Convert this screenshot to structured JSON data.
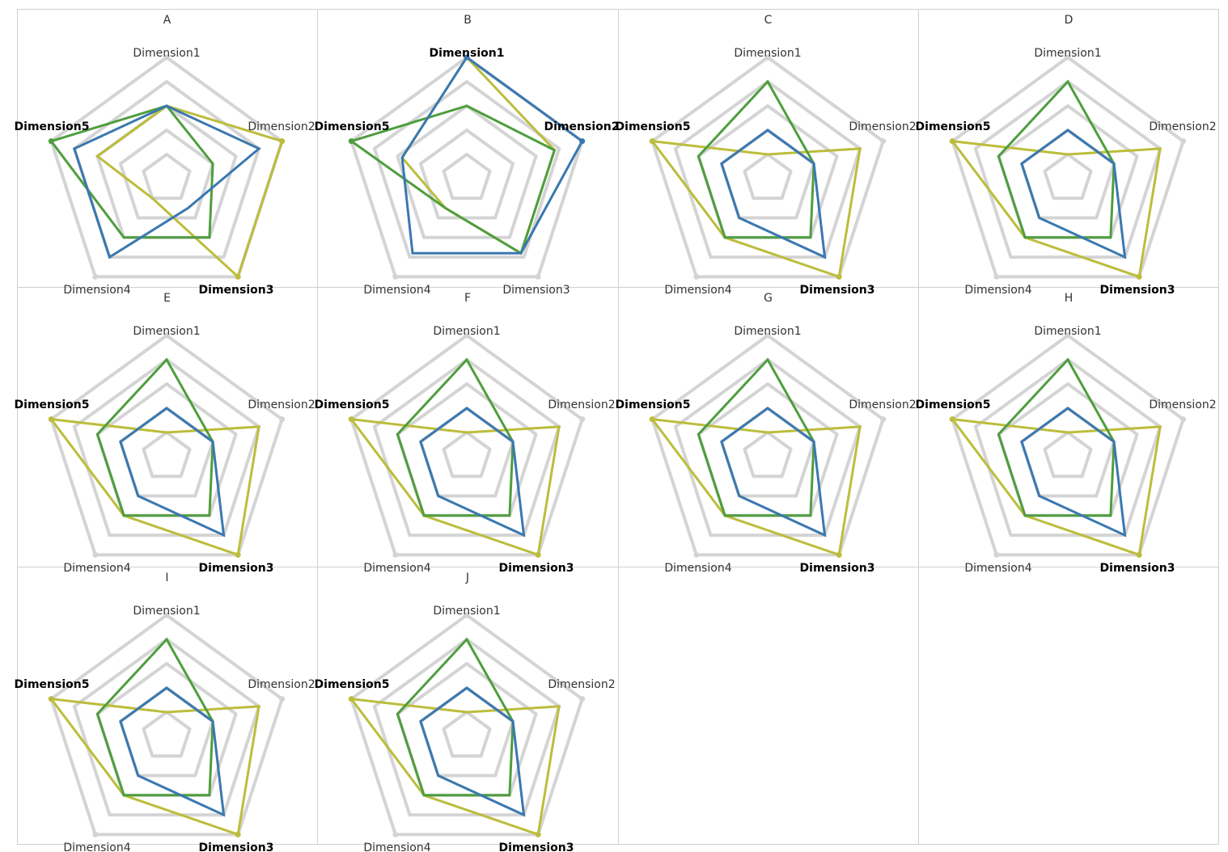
{
  "chart_data": {
    "type": "radar",
    "axes": [
      "Dimension1",
      "Dimension2",
      "Dimension3",
      "Dimension4",
      "Dimension5"
    ],
    "rlim": [
      0,
      5
    ],
    "rings": [
      1,
      2,
      3,
      4,
      5
    ],
    "series_colors": {
      "yellow": "#bcbd3c",
      "green": "#4e9e3e",
      "blue": "#3a78b0"
    },
    "grid_color": "#d4d4d4",
    "panels": [
      {
        "title": "A",
        "bold_axes": [
          5,
          3
        ],
        "series": [
          {
            "name": "yellow",
            "values": [
              3.0,
              5.0,
              5.0,
              1.0,
              3.0
            ],
            "markers": [
              2,
              3
            ]
          },
          {
            "name": "green",
            "values": [
              3.0,
              2.0,
              3.0,
              3.0,
              5.0
            ],
            "markers": [
              5
            ]
          },
          {
            "name": "blue",
            "values": [
              3.0,
              4.0,
              1.5,
              4.0,
              4.0
            ],
            "markers": []
          }
        ]
      },
      {
        "title": "B",
        "bold_axes": [
          1,
          2,
          5
        ],
        "series": [
          {
            "name": "yellow",
            "values": [
              5.0,
              3.8,
              3.8,
              1.5,
              2.8
            ],
            "markers": []
          },
          {
            "name": "green",
            "values": [
              3.0,
              3.8,
              3.8,
              1.5,
              5.0
            ],
            "markers": [
              5
            ]
          },
          {
            "name": "blue",
            "values": [
              5.0,
              5.0,
              3.8,
              3.8,
              2.8
            ],
            "markers": [
              1,
              2
            ]
          }
        ]
      },
      {
        "title": "C",
        "bold_axes": [
          3,
          5
        ],
        "series": [
          {
            "name": "yellow",
            "values": [
              1.0,
              4.0,
              5.0,
              3.0,
              5.0
            ],
            "markers": [
              3,
              5
            ]
          },
          {
            "name": "green",
            "values": [
              4.0,
              2.0,
              3.0,
              3.0,
              3.0
            ],
            "markers": []
          },
          {
            "name": "blue",
            "values": [
              2.0,
              2.0,
              4.0,
              2.0,
              2.0
            ],
            "markers": []
          }
        ]
      },
      {
        "title": "D",
        "bold_axes": [
          3,
          5
        ],
        "series": [
          {
            "name": "yellow",
            "values": [
              1.0,
              4.0,
              5.0,
              3.0,
              5.0
            ],
            "markers": [
              3,
              5
            ]
          },
          {
            "name": "green",
            "values": [
              4.0,
              2.0,
              3.0,
              3.0,
              3.0
            ],
            "markers": []
          },
          {
            "name": "blue",
            "values": [
              2.0,
              2.0,
              4.0,
              2.0,
              2.0
            ],
            "markers": []
          }
        ]
      },
      {
        "title": "E",
        "bold_axes": [
          3,
          5
        ],
        "series": [
          {
            "name": "yellow",
            "values": [
              1.0,
              4.0,
              5.0,
              3.0,
              5.0
            ],
            "markers": [
              3,
              5
            ]
          },
          {
            "name": "green",
            "values": [
              4.0,
              2.0,
              3.0,
              3.0,
              3.0
            ],
            "markers": []
          },
          {
            "name": "blue",
            "values": [
              2.0,
              2.0,
              4.0,
              2.0,
              2.0
            ],
            "markers": []
          }
        ]
      },
      {
        "title": "F",
        "bold_axes": [
          3,
          5
        ],
        "series": [
          {
            "name": "yellow",
            "values": [
              1.0,
              4.0,
              5.0,
              3.0,
              5.0
            ],
            "markers": [
              3,
              5
            ]
          },
          {
            "name": "green",
            "values": [
              4.0,
              2.0,
              3.0,
              3.0,
              3.0
            ],
            "markers": []
          },
          {
            "name": "blue",
            "values": [
              2.0,
              2.0,
              4.0,
              2.0,
              2.0
            ],
            "markers": []
          }
        ]
      },
      {
        "title": "G",
        "bold_axes": [
          3,
          5
        ],
        "series": [
          {
            "name": "yellow",
            "values": [
              1.0,
              4.0,
              5.0,
              3.0,
              5.0
            ],
            "markers": [
              3,
              5
            ]
          },
          {
            "name": "green",
            "values": [
              4.0,
              2.0,
              3.0,
              3.0,
              3.0
            ],
            "markers": []
          },
          {
            "name": "blue",
            "values": [
              2.0,
              2.0,
              4.0,
              2.0,
              2.0
            ],
            "markers": []
          }
        ]
      },
      {
        "title": "H",
        "bold_axes": [
          3,
          5
        ],
        "series": [
          {
            "name": "yellow",
            "values": [
              1.0,
              4.0,
              5.0,
              3.0,
              5.0
            ],
            "markers": [
              3,
              5
            ]
          },
          {
            "name": "green",
            "values": [
              4.0,
              2.0,
              3.0,
              3.0,
              3.0
            ],
            "markers": []
          },
          {
            "name": "blue",
            "values": [
              2.0,
              2.0,
              4.0,
              2.0,
              2.0
            ],
            "markers": []
          }
        ]
      },
      {
        "title": "I",
        "bold_axes": [
          3,
          5
        ],
        "series": [
          {
            "name": "yellow",
            "values": [
              1.0,
              4.0,
              5.0,
              3.0,
              5.0
            ],
            "markers": [
              3,
              5
            ]
          },
          {
            "name": "green",
            "values": [
              4.0,
              2.0,
              3.0,
              3.0,
              3.0
            ],
            "markers": []
          },
          {
            "name": "blue",
            "values": [
              2.0,
              2.0,
              4.0,
              2.0,
              2.0
            ],
            "markers": []
          }
        ]
      },
      {
        "title": "J",
        "bold_axes": [
          3,
          5
        ],
        "series": [
          {
            "name": "yellow",
            "values": [
              1.0,
              4.0,
              5.0,
              3.0,
              5.0
            ],
            "markers": [
              3,
              5
            ]
          },
          {
            "name": "green",
            "values": [
              4.0,
              2.0,
              3.0,
              3.0,
              3.0
            ],
            "markers": []
          },
          {
            "name": "blue",
            "values": [
              2.0,
              2.0,
              4.0,
              2.0,
              2.0
            ],
            "markers": []
          }
        ]
      }
    ]
  }
}
